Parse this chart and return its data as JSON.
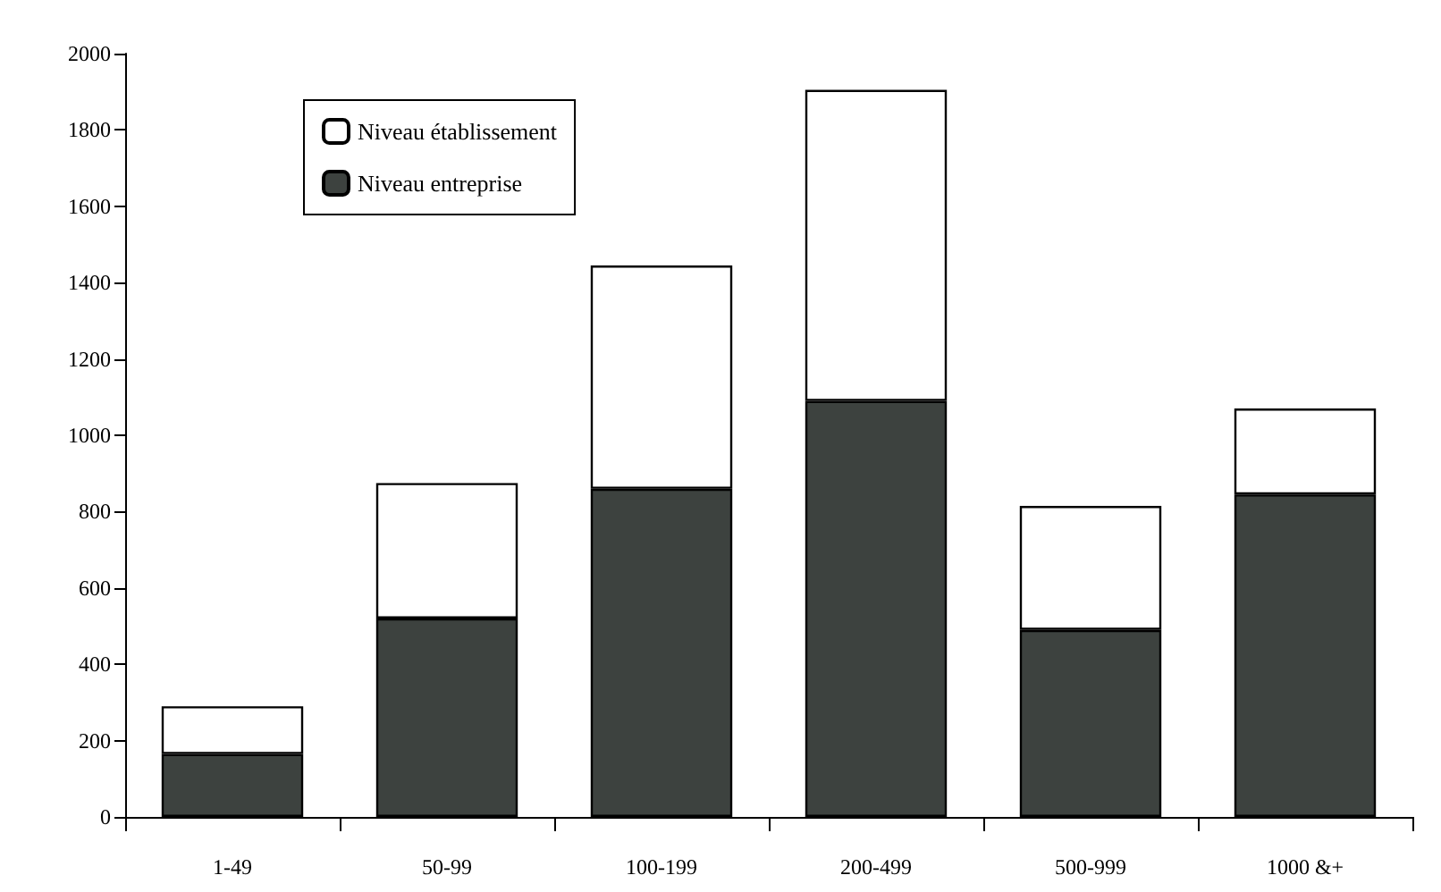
{
  "chart_data": {
    "type": "bar",
    "stacked": true,
    "categories": [
      "1-49",
      "50-99",
      "100-199",
      "200-499",
      "500-999",
      "1000 &+"
    ],
    "series": [
      {
        "name": "Niveau entreprise",
        "color": "#3d423f",
        "values": [
          165,
          520,
          860,
          1090,
          490,
          845
        ]
      },
      {
        "name": "Niveau établissement",
        "color": "#ffffff",
        "values": [
          125,
          355,
          585,
          815,
          325,
          225
        ]
      }
    ],
    "ylim": [
      0,
      2000
    ],
    "yticks": [
      0,
      200,
      400,
      600,
      800,
      1000,
      1200,
      1400,
      1600,
      1800,
      2000
    ],
    "grid": false,
    "legend": "top left"
  }
}
